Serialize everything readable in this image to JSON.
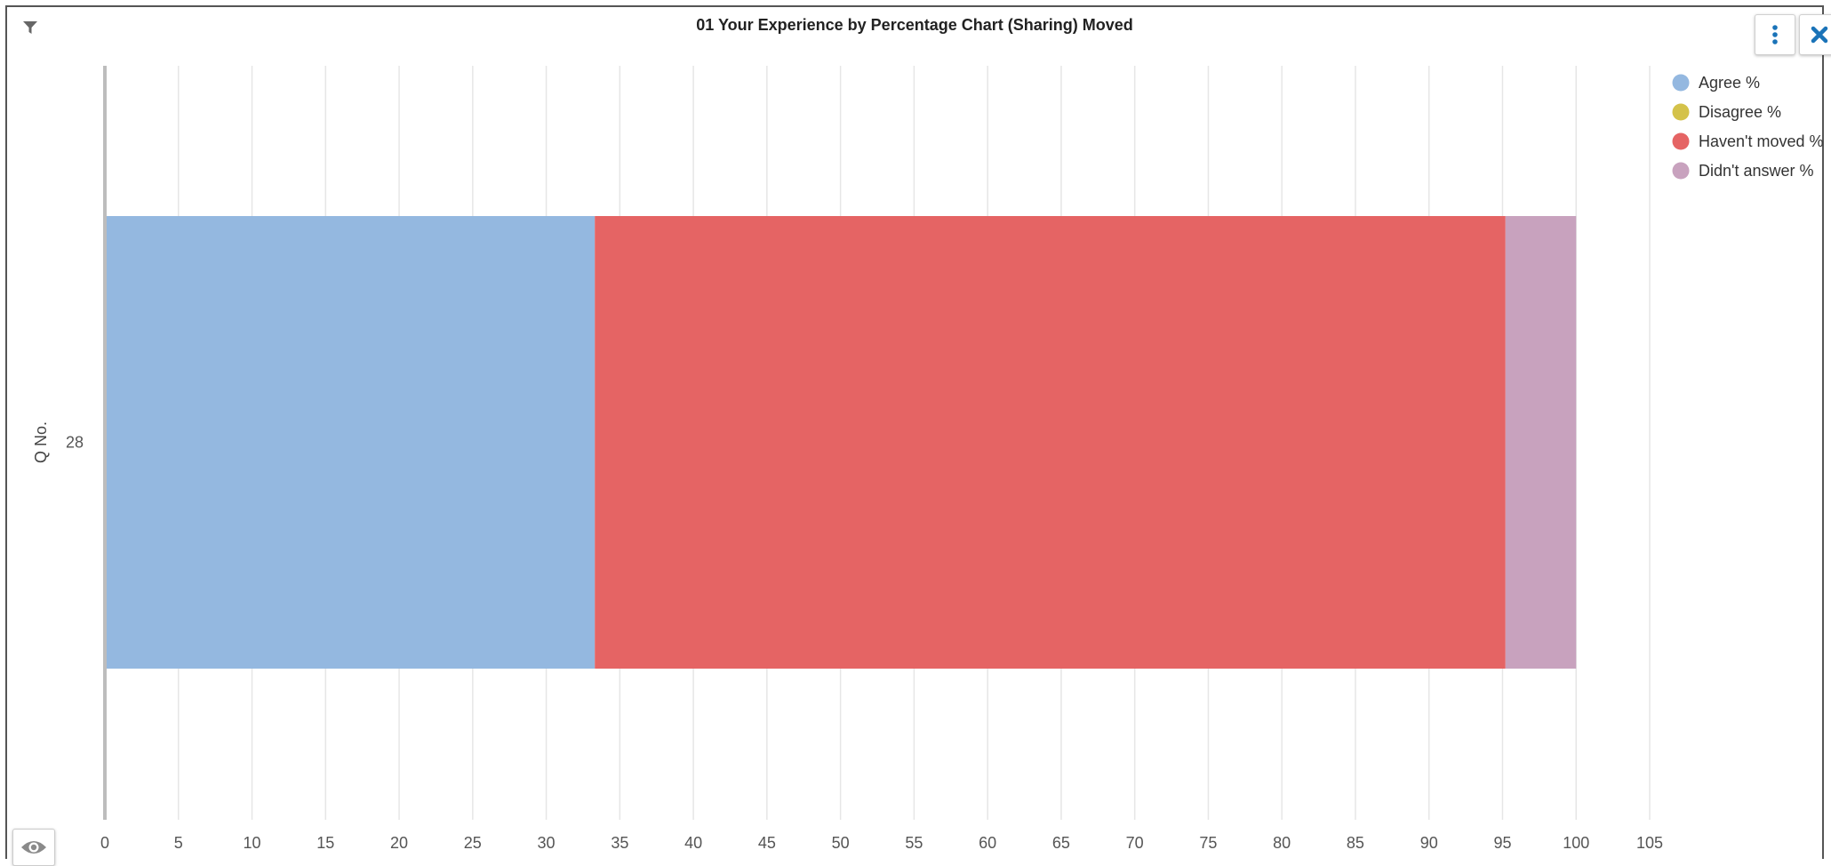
{
  "title": "01 Your Experience by Percentage Chart (Sharing) Moved",
  "icons": {
    "filter": "filter-icon",
    "menu": "more-vertical-icon",
    "close": "close-icon",
    "visibility": "eye-icon"
  },
  "colors": {
    "agree": "#94b8e0",
    "disagree": "#d4c24a",
    "havent_moved": "#e56464",
    "didnt_answer": "#c8a2be",
    "accent": "#1a73b8"
  },
  "chart_data": {
    "type": "bar",
    "orientation": "horizontal",
    "stacked": true,
    "title": "01 Your Experience by Percentage Chart (Sharing) Moved",
    "ylabel": "Q No.",
    "xlabel": "",
    "categories": [
      "28"
    ],
    "xlim": [
      0,
      105
    ],
    "xticks": [
      0,
      5,
      10,
      15,
      20,
      25,
      30,
      35,
      40,
      45,
      50,
      55,
      60,
      65,
      70,
      75,
      80,
      85,
      90,
      95,
      100,
      105
    ],
    "grid": true,
    "legend_position": "top-right",
    "series": [
      {
        "name": "Agree %",
        "values": [
          33.3
        ],
        "color": "#94b8e0"
      },
      {
        "name": "Disagree %",
        "values": [
          0
        ],
        "color": "#d4c24a"
      },
      {
        "name": "Haven't moved %",
        "values": [
          61.9
        ],
        "color": "#e56464"
      },
      {
        "name": "Didn't answer %",
        "values": [
          4.8
        ],
        "color": "#c8a2be"
      }
    ]
  }
}
